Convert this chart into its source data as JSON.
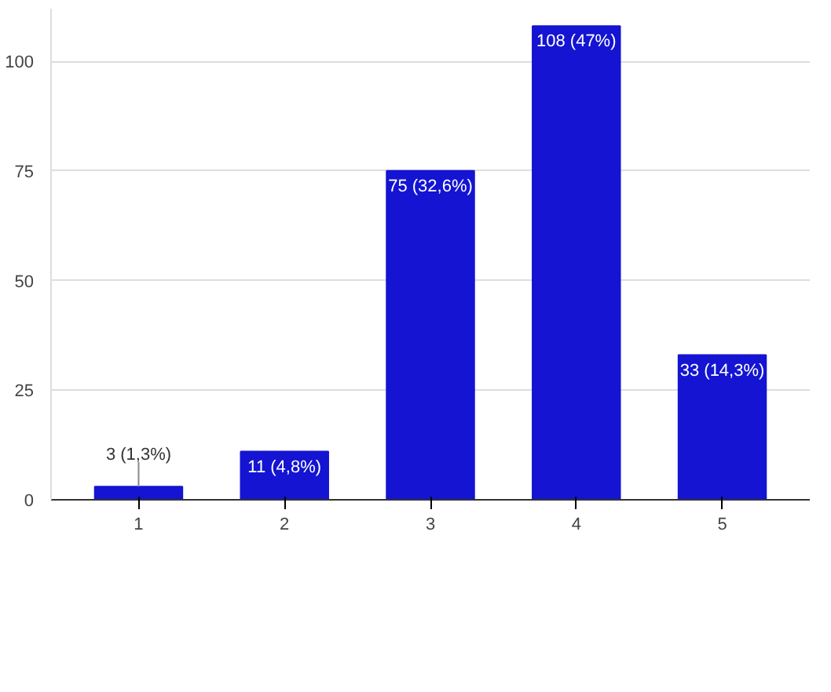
{
  "chart_data": {
    "type": "bar",
    "categories": [
      "1",
      "2",
      "3",
      "4",
      "5"
    ],
    "values": [
      3,
      11,
      75,
      108,
      33
    ],
    "value_labels": [
      "3 (1,3%)",
      "11 (4,8%)",
      "75 (32,6%)",
      "108 (47%)",
      "33 (14,3%)"
    ],
    "color": "#1414d2",
    "ylim": [
      0,
      112
    ],
    "yticks": [
      0,
      25,
      50,
      75,
      100
    ],
    "grid": "y"
  }
}
